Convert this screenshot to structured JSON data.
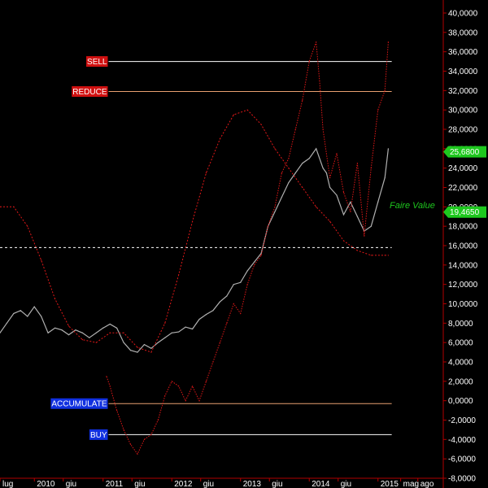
{
  "chart_data": {
    "type": "line",
    "y_axis": {
      "min": -8,
      "max": 40,
      "tick_labels": [
        "40,0000",
        "38,0000",
        "36,0000",
        "34,0000",
        "32,0000",
        "30,0000",
        "28,0000",
        "26,0000",
        "24,0000",
        "22,0000",
        "20,0000",
        "18,0000",
        "16,0000",
        "14,0000",
        "12,0000",
        "10,0000",
        "8,0000",
        "6,0000",
        "4,0000",
        "2,0000",
        "0,0000",
        "-2,0000",
        "-4,0000",
        "-6,0000",
        "-8,0000"
      ],
      "tick_values": [
        40,
        38,
        36,
        34,
        32,
        30,
        28,
        26,
        24,
        22,
        20,
        18,
        16,
        14,
        12,
        10,
        8,
        6,
        4,
        2,
        0,
        -2,
        -4,
        -6,
        -8
      ]
    },
    "x_axis": {
      "min": 2009.5,
      "max": 2015.95,
      "ticks": [
        {
          "label": "lug",
          "value": 2009.5
        },
        {
          "label": "2010",
          "value": 2010.0
        },
        {
          "label": "giu",
          "value": 2010.42
        },
        {
          "label": "2011",
          "value": 2011.0
        },
        {
          "label": "giu",
          "value": 2011.42
        },
        {
          "label": "2012",
          "value": 2012.0
        },
        {
          "label": "giu",
          "value": 2012.42
        },
        {
          "label": "2013",
          "value": 2013.0
        },
        {
          "label": "giu",
          "value": 2013.42
        },
        {
          "label": "2014",
          "value": 2014.0
        },
        {
          "label": "giu",
          "value": 2014.42
        },
        {
          "label": "2015",
          "value": 2015.0
        },
        {
          "label": "mag",
          "value": 2015.33
        },
        {
          "label": "ago",
          "value": 2015.58
        }
      ]
    },
    "levels": [
      {
        "label": "SELL",
        "value": 35.0,
        "color": "#ffffff",
        "tag_bg": "#d01010"
      },
      {
        "label": "REDUCE",
        "value": 31.9,
        "color": "#e8a070",
        "tag_bg": "#d01010"
      },
      {
        "label": "ACCUMULATE",
        "value": -0.3,
        "color": "#e8a070",
        "tag_bg": "#1030e0"
      },
      {
        "label": "BUY",
        "value": -3.5,
        "color": "#ffffff",
        "tag_bg": "#1030e0"
      }
    ],
    "reference_line": {
      "value": 15.8,
      "style": "dashed",
      "color": "#ffffff"
    },
    "fair_value_label": "Faire Value",
    "last_price_tag": {
      "text": "25,6800",
      "value": 25.68,
      "bg": "#1ec81e"
    },
    "fair_value_tag": {
      "text": "19,4650",
      "value": 19.465,
      "bg": "#1ec81e"
    },
    "series": [
      {
        "style": "grey-line",
        "color": "#b0b0b0",
        "x": [
          2009.5,
          2009.6,
          2009.7,
          2009.8,
          2009.9,
          2010.0,
          2010.1,
          2010.2,
          2010.3,
          2010.4,
          2010.5,
          2010.6,
          2010.7,
          2010.8,
          2010.9,
          2011.0,
          2011.1,
          2011.2,
          2011.3,
          2011.4,
          2011.5,
          2011.6,
          2011.7,
          2011.8,
          2011.9,
          2012.0,
          2012.1,
          2012.2,
          2012.3,
          2012.4,
          2012.5,
          2012.6,
          2012.7,
          2012.8,
          2012.9,
          2013.0,
          2013.1,
          2013.2,
          2013.3,
          2013.4,
          2013.5,
          2013.6,
          2013.7,
          2013.8,
          2013.9,
          2014.0,
          2014.1,
          2014.2,
          2014.25,
          2014.3,
          2014.4,
          2014.5,
          2014.6,
          2014.7,
          2014.8,
          2014.9,
          2015.0,
          2015.1,
          2015.15
        ],
        "y": [
          7.0,
          8.0,
          9.0,
          9.3,
          8.7,
          9.7,
          8.7,
          7.0,
          7.5,
          7.3,
          6.8,
          7.3,
          7.0,
          6.5,
          7.0,
          7.5,
          7.9,
          7.5,
          6.0,
          5.2,
          5.0,
          5.8,
          5.4,
          6.0,
          6.5,
          7.0,
          7.1,
          7.6,
          7.4,
          8.4,
          8.9,
          9.3,
          10.2,
          10.8,
          12.0,
          12.2,
          13.4,
          14.3,
          15.2,
          18.0,
          19.5,
          21.0,
          22.5,
          23.5,
          24.5,
          25.0,
          26.0,
          24.0,
          23.5,
          22.0,
          21.2,
          19.2,
          20.5,
          19.0,
          17.5,
          18.0,
          20.5,
          23.0,
          26.0
        ]
      },
      {
        "style": "red-dashed",
        "color": "#e01818",
        "x": [
          2009.5,
          2009.7,
          2009.9,
          2010.1,
          2010.3,
          2010.5,
          2010.7,
          2010.9,
          2011.1,
          2011.3,
          2011.5,
          2011.7,
          2011.9,
          2012.1,
          2012.3,
          2012.5,
          2012.7,
          2012.9,
          2013.1,
          2013.3,
          2013.5,
          2013.7,
          2013.9,
          2014.1,
          2014.3,
          2014.5,
          2014.7,
          2014.9,
          2015.1,
          2015.15
        ],
        "y": [
          20.0,
          20.0,
          18.0,
          14.5,
          10.5,
          7.7,
          6.3,
          6.0,
          7.0,
          7.0,
          5.5,
          5.0,
          8.0,
          13.0,
          18.5,
          23.5,
          27.0,
          29.5,
          30.0,
          28.5,
          26.0,
          24.0,
          22.0,
          20.0,
          18.5,
          16.5,
          15.5,
          15.0,
          15.0,
          15.0
        ]
      },
      {
        "style": "red-dotted",
        "color": "#e01818",
        "x": [
          2011.05,
          2011.1,
          2011.2,
          2011.3,
          2011.4,
          2011.5,
          2011.6,
          2011.7,
          2011.8,
          2011.9,
          2012.0,
          2012.1,
          2012.2,
          2012.3,
          2012.4,
          2012.5,
          2012.6,
          2012.7,
          2012.8,
          2012.9,
          2013.0,
          2013.1,
          2013.2,
          2013.3,
          2013.4,
          2013.5,
          2013.6,
          2013.7,
          2013.8,
          2013.9,
          2014.0,
          2014.1,
          2014.15,
          2014.2,
          2014.3,
          2014.4,
          2014.5,
          2014.6,
          2014.7,
          2014.8,
          2014.9,
          2015.0,
          2015.1,
          2015.15
        ],
        "y": [
          2.5,
          1.5,
          -1.0,
          -3.0,
          -4.5,
          -5.5,
          -4.0,
          -3.5,
          -2.0,
          0.5,
          2.0,
          1.5,
          0.0,
          1.5,
          0.0,
          2.0,
          4.0,
          6.0,
          8.0,
          10.0,
          9.0,
          12.0,
          14.0,
          15.0,
          18.0,
          20.0,
          23.5,
          25.0,
          28.0,
          31.0,
          35.0,
          37.0,
          33.0,
          28.0,
          23.0,
          25.5,
          21.5,
          19.5,
          24.5,
          17.0,
          24.0,
          30.0,
          32.0,
          37.0
        ]
      }
    ]
  }
}
